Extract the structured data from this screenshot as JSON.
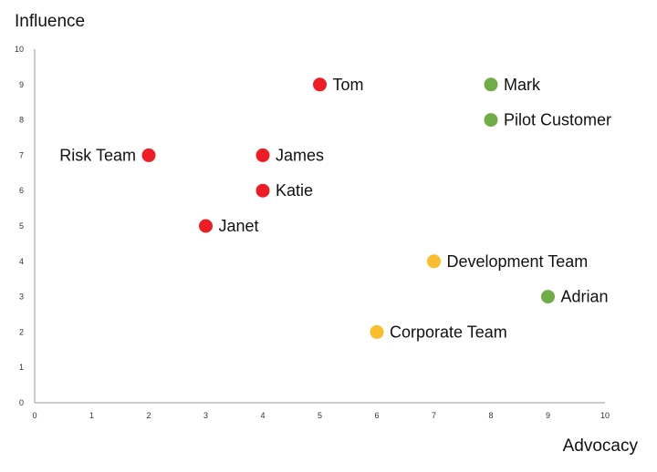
{
  "chart_data": {
    "type": "scatter",
    "title": "",
    "xlabel": "Advocacy",
    "ylabel": "Influence",
    "xlim": [
      0,
      10
    ],
    "ylim": [
      0,
      10
    ],
    "xticks": [
      0,
      1,
      2,
      3,
      4,
      5,
      6,
      7,
      8,
      9,
      10
    ],
    "yticks": [
      0,
      1,
      2,
      3,
      4,
      5,
      6,
      7,
      8,
      9,
      10
    ],
    "grid": false,
    "legend": "none",
    "colors": {
      "red": "#ee1c25",
      "green": "#70ad47",
      "yellow": "#fbbd2e"
    },
    "points": [
      {
        "label": "Tom",
        "x": 5,
        "y": 9,
        "color": "red",
        "label_side": "right"
      },
      {
        "label": "Mark",
        "x": 8,
        "y": 9,
        "color": "green",
        "label_side": "right"
      },
      {
        "label": "Pilot Customer",
        "x": 8,
        "y": 8,
        "color": "green",
        "label_side": "right"
      },
      {
        "label": "Risk Team",
        "x": 2,
        "y": 7,
        "color": "red",
        "label_side": "left"
      },
      {
        "label": "James",
        "x": 4,
        "y": 7,
        "color": "red",
        "label_side": "right"
      },
      {
        "label": "Katie",
        "x": 4,
        "y": 6,
        "color": "red",
        "label_side": "right"
      },
      {
        "label": "Janet",
        "x": 3,
        "y": 5,
        "color": "red",
        "label_side": "right"
      },
      {
        "label": "Development Team",
        "x": 7,
        "y": 4,
        "color": "yellow",
        "label_side": "right"
      },
      {
        "label": "Adrian",
        "x": 9,
        "y": 3,
        "color": "green",
        "label_side": "right"
      },
      {
        "label": "Corporate Team",
        "x": 6,
        "y": 2,
        "color": "yellow",
        "label_side": "right"
      }
    ]
  }
}
